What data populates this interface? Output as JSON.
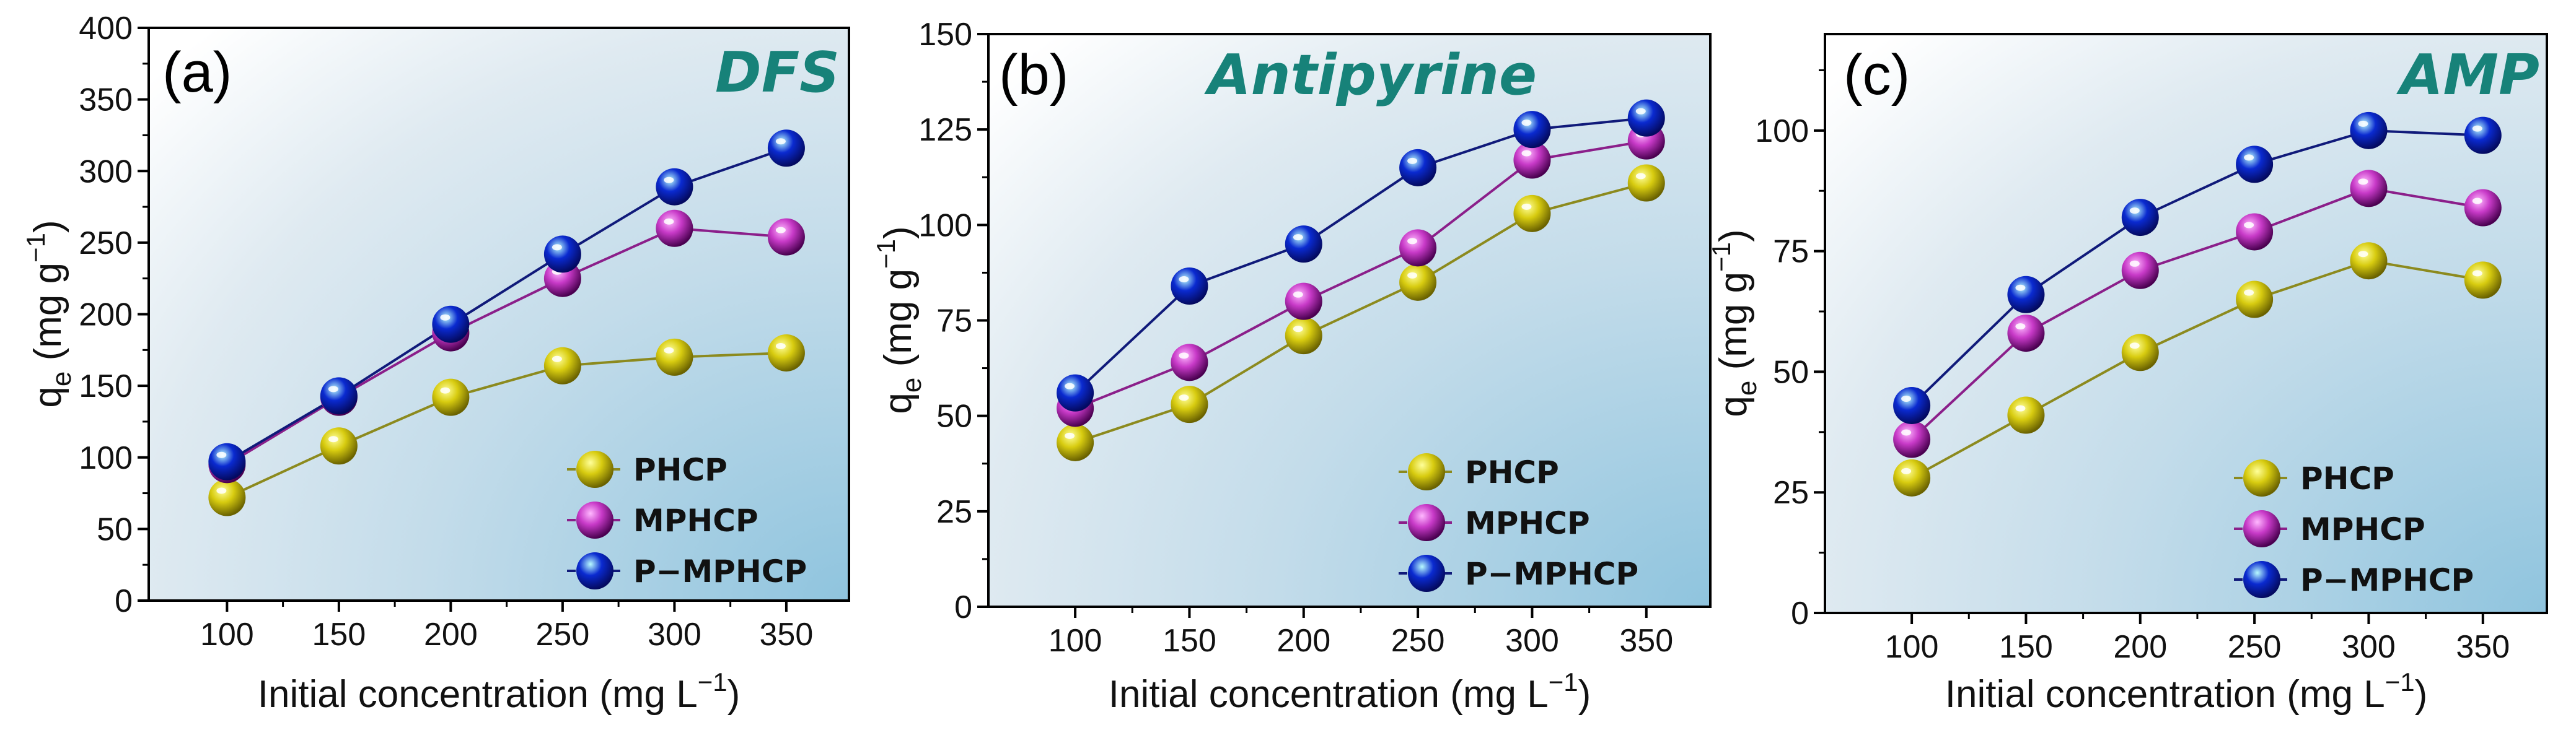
{
  "chart_data": [
    {
      "type": "line",
      "panel_label": "(a)",
      "title": "DFS",
      "xlabel": "Initial concentration (mg L",
      "xlabel_sup": "−1",
      "xlabel_end": ")",
      "ylabel": "q",
      "ylabel_sub": "e",
      "ylabel_rest": " (mg g",
      "ylabel_sup": "−1",
      "ylabel_end": ")",
      "x": [
        100,
        150,
        200,
        250,
        300,
        350
      ],
      "xlim": [
        65,
        378
      ],
      "ylim": [
        0,
        400
      ],
      "xticks": [
        100,
        150,
        200,
        250,
        300,
        350
      ],
      "yticks": [
        0,
        50,
        100,
        150,
        200,
        250,
        300,
        350,
        400
      ],
      "legend_position": "bottom-right",
      "series": [
        {
          "name": "PHCP",
          "values": [
            72,
            108,
            142,
            164,
            170,
            173
          ]
        },
        {
          "name": "MPHCP",
          "values": [
            95,
            142,
            187,
            225,
            260,
            254
          ]
        },
        {
          "name": "P−MPHCP",
          "values": [
            97,
            143,
            193,
            242,
            289,
            316
          ]
        }
      ]
    },
    {
      "type": "line",
      "panel_label": "(b)",
      "title": "Antipyrine",
      "xlabel": "Initial concentration (mg L",
      "xlabel_sup": "−1",
      "xlabel_end": ")",
      "ylabel": "q",
      "ylabel_sub": "e",
      "ylabel_rest": " (mg g",
      "ylabel_sup": "−1",
      "ylabel_end": ")",
      "x": [
        100,
        150,
        200,
        250,
        300,
        350
      ],
      "xlim": [
        62,
        378
      ],
      "ylim": [
        0,
        150
      ],
      "xticks": [
        100,
        150,
        200,
        250,
        300,
        350
      ],
      "yticks": [
        0,
        25,
        50,
        75,
        100,
        125,
        150
      ],
      "legend_position": "bottom-right",
      "series": [
        {
          "name": "PHCP",
          "values": [
            43,
            53,
            71,
            85,
            103,
            111
          ]
        },
        {
          "name": "MPHCP",
          "values": [
            52,
            64,
            80,
            94,
            117,
            122
          ]
        },
        {
          "name": "P−MPHCP",
          "values": [
            56,
            84,
            95,
            115,
            125,
            128
          ]
        }
      ]
    },
    {
      "type": "line",
      "panel_label": "(c)",
      "title": "AMP",
      "xlabel": "Initial concentration (mg L",
      "xlabel_sup": "−1",
      "xlabel_end": ")",
      "ylabel": "q",
      "ylabel_sub": "e",
      "ylabel_rest": " (mg g",
      "ylabel_sup": "−1",
      "ylabel_end": ")",
      "x": [
        100,
        150,
        200,
        250,
        300,
        350
      ],
      "xlim": [
        62,
        378
      ],
      "ylim": [
        0,
        120
      ],
      "xticks": [
        100,
        150,
        200,
        250,
        300,
        350
      ],
      "yticks": [
        0,
        25,
        50,
        75,
        100
      ],
      "legend_position": "bottom-right",
      "series": [
        {
          "name": "PHCP",
          "values": [
            28,
            41,
            54,
            65,
            73,
            69
          ]
        },
        {
          "name": "MPHCP",
          "values": [
            36,
            58,
            71,
            79,
            88,
            84
          ]
        },
        {
          "name": "P−MPHCP",
          "values": [
            43,
            66,
            82,
            93,
            100,
            99
          ]
        }
      ]
    }
  ],
  "style": {
    "series_colors": [
      "#8c8a1e",
      "#8b1f8a",
      "#101a7a"
    ],
    "sphere_colors": [
      [
        "#ffff9a",
        "#d8cc10",
        "#6a6200"
      ],
      [
        "#ffb8ff",
        "#c83ac8",
        "#4a0050"
      ],
      [
        "#b8fbff",
        "#0a2ad0",
        "#040a60"
      ]
    ],
    "title_color": "#178279",
    "background_gradient": [
      "#ffffff",
      "#dfeaf1",
      "#8fc4de"
    ]
  }
}
